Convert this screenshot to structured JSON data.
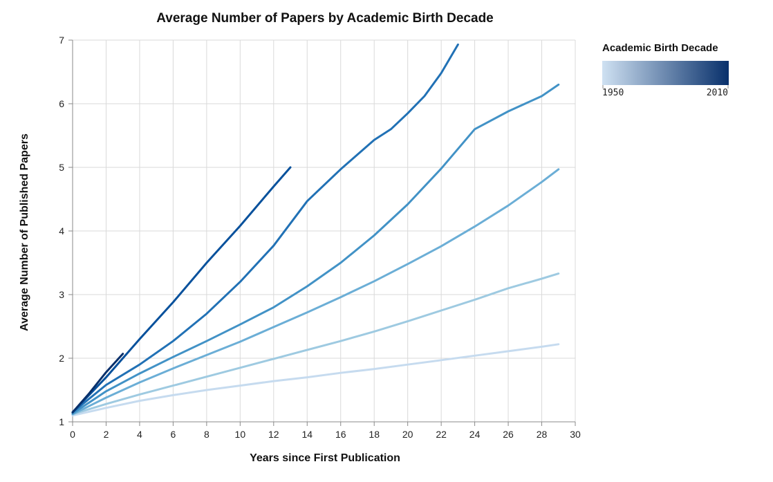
{
  "chart_data": {
    "type": "line",
    "title": "Average Number of Papers by Academic Birth Decade",
    "xlabel": "Years since First Publication",
    "ylabel": "Average Number of Published Papers",
    "xlim": [
      0,
      30
    ],
    "ylim": [
      1,
      7
    ],
    "x_ticks": [
      "0",
      "2",
      "4",
      "6",
      "8",
      "10",
      "12",
      "14",
      "16",
      "18",
      "20",
      "22",
      "24",
      "26",
      "28",
      "30"
    ],
    "y_ticks": [
      "1",
      "2",
      "3",
      "4",
      "5",
      "6",
      "7"
    ],
    "grid": true,
    "legend": {
      "title": "Academic Birth Decade",
      "type": "gradient",
      "min_label": "1950",
      "max_label": "2010",
      "min_color": "#cfe1f2",
      "max_color": "#08306b",
      "placement": "top-right"
    },
    "series": [
      {
        "decade": 1950,
        "color": "#c6dbef",
        "x": [
          0,
          2,
          4,
          6,
          8,
          10,
          12,
          14,
          16,
          18,
          20,
          22,
          24,
          26,
          28,
          29
        ],
        "y": [
          1.1,
          1.22,
          1.33,
          1.42,
          1.5,
          1.57,
          1.64,
          1.7,
          1.77,
          1.83,
          1.9,
          1.97,
          2.04,
          2.11,
          2.18,
          2.22
        ]
      },
      {
        "decade": 1960,
        "color": "#9ecae1",
        "x": [
          0,
          2,
          4,
          6,
          8,
          10,
          12,
          14,
          16,
          18,
          20,
          22,
          24,
          26,
          28,
          29
        ],
        "y": [
          1.12,
          1.28,
          1.43,
          1.57,
          1.71,
          1.85,
          1.99,
          2.13,
          2.27,
          2.42,
          2.58,
          2.75,
          2.92,
          3.1,
          3.25,
          3.33
        ]
      },
      {
        "decade": 1970,
        "color": "#6baed6",
        "x": [
          0,
          2,
          4,
          6,
          8,
          10,
          12,
          14,
          16,
          18,
          20,
          22,
          24,
          26,
          28,
          29
        ],
        "y": [
          1.12,
          1.38,
          1.62,
          1.84,
          2.05,
          2.26,
          2.49,
          2.72,
          2.96,
          3.21,
          3.48,
          3.76,
          4.07,
          4.4,
          4.77,
          4.97
        ]
      },
      {
        "decade": 1980,
        "color": "#4292c6",
        "x": [
          0,
          2,
          4,
          6,
          8,
          10,
          12,
          14,
          16,
          18,
          20,
          22,
          24,
          26,
          28,
          29
        ],
        "y": [
          1.13,
          1.48,
          1.76,
          2.02,
          2.27,
          2.53,
          2.8,
          3.13,
          3.5,
          3.93,
          4.42,
          4.98,
          5.6,
          5.88,
          6.12,
          6.3
        ]
      },
      {
        "decade": 1990,
        "color": "#2171b5",
        "x": [
          0,
          2,
          4,
          6,
          8,
          10,
          12,
          14,
          16,
          18,
          19,
          20,
          21,
          22,
          23
        ],
        "y": [
          1.15,
          1.58,
          1.9,
          2.27,
          2.7,
          3.2,
          3.77,
          4.47,
          4.97,
          5.43,
          5.6,
          5.85,
          6.12,
          6.48,
          6.93
        ]
      },
      {
        "decade": 2000,
        "color": "#08519c",
        "x": [
          0,
          2,
          4,
          6,
          8,
          10,
          12,
          13
        ],
        "y": [
          1.15,
          1.7,
          2.3,
          2.88,
          3.5,
          4.08,
          4.7,
          5.0
        ]
      },
      {
        "decade": 2010,
        "color": "#08306b",
        "x": [
          0,
          1,
          2,
          3
        ],
        "y": [
          1.15,
          1.45,
          1.78,
          2.07
        ]
      }
    ]
  }
}
